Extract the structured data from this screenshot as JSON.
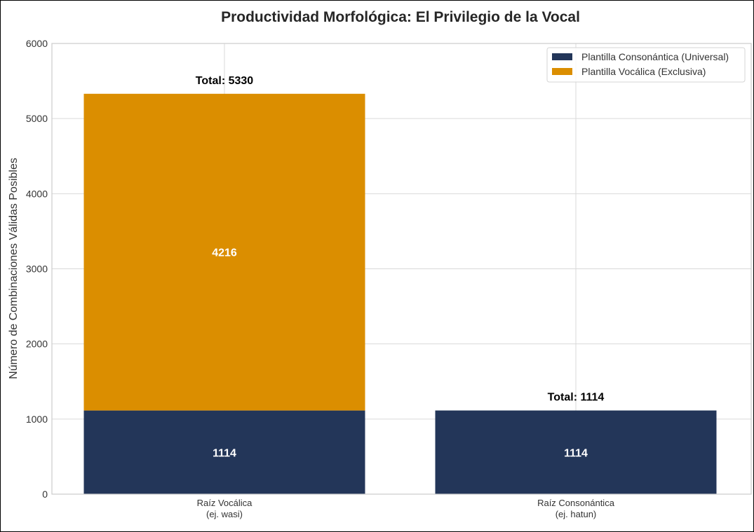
{
  "chart_data": {
    "type": "bar",
    "stacked": true,
    "title": "Productividad Morfológica: El Privilegio de la Vocal",
    "xlabel": "",
    "ylabel": "Número de Combinaciones Válidas Posibles",
    "ylim": [
      0,
      6000
    ],
    "yticks": [
      0,
      1000,
      2000,
      3000,
      4000,
      5000,
      6000
    ],
    "grid": true,
    "legend_position": "top-right",
    "categories": [
      {
        "line1": "Raíz Vocálica",
        "line2": "(ej. wasi)"
      },
      {
        "line1": "Raíz Consonántica",
        "line2": "(ej. hatun)"
      }
    ],
    "series": [
      {
        "name": "Plantilla Consonántica (Universal)",
        "color": "#233659",
        "values": [
          1114,
          1114
        ]
      },
      {
        "name": "Plantilla Vocálica (Exclusiva)",
        "color": "#db8e00",
        "values": [
          4216,
          0
        ]
      }
    ],
    "totals": [
      "Total: 5330",
      "Total: 1114"
    ]
  }
}
